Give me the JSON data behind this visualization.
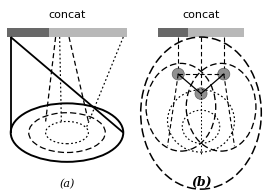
{
  "title_a": "concat",
  "title_b": "concat",
  "label_a": "(a)",
  "label_b": "(b)",
  "bg_color": "#ffffff",
  "bar_left_dark": "#686868",
  "bar_right_light": "#b8b8b8",
  "dot_color": "#909090",
  "dot_edge": "#606060"
}
